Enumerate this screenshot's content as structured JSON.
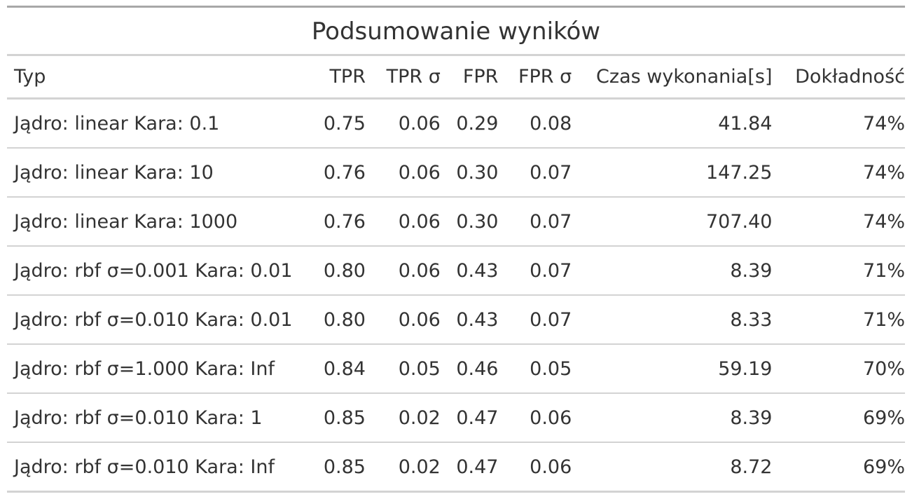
{
  "table": {
    "title": "Podsumowanie wyników",
    "columns": [
      "Typ",
      "TPR",
      "TPR σ",
      "FPR",
      "FPR σ",
      "Czas wykonania[s]",
      "Dokładność"
    ],
    "rows": [
      [
        "Jądro: linear Kara: 0.1",
        "0.75",
        "0.06",
        "0.29",
        "0.08",
        "41.84",
        "74%"
      ],
      [
        "Jądro: linear Kara: 10",
        "0.76",
        "0.06",
        "0.30",
        "0.07",
        "147.25",
        "74%"
      ],
      [
        "Jądro: linear Kara: 1000",
        "0.76",
        "0.06",
        "0.30",
        "0.07",
        "707.40",
        "74%"
      ],
      [
        "Jądro: rbf σ=0.001 Kara: 0.01",
        "0.80",
        "0.06",
        "0.43",
        "0.07",
        "8.39",
        "71%"
      ],
      [
        "Jądro: rbf σ=0.010 Kara: 0.01",
        "0.80",
        "0.06",
        "0.43",
        "0.07",
        "8.33",
        "71%"
      ],
      [
        "Jądro: rbf σ=1.000 Kara: Inf",
        "0.84",
        "0.05",
        "0.46",
        "0.05",
        "59.19",
        "70%"
      ],
      [
        "Jądro: rbf σ=0.010 Kara: 1",
        "0.85",
        "0.02",
        "0.47",
        "0.06",
        "8.39",
        "69%"
      ],
      [
        "Jądro: rbf σ=0.010 Kara: Inf",
        "0.85",
        "0.02",
        "0.47",
        "0.06",
        "8.72",
        "69%"
      ]
    ]
  }
}
